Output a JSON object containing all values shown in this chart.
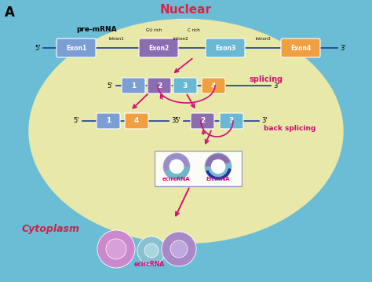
{
  "title": "A",
  "nuclear_label": "Nuclear",
  "cytoplasm_label": "Cytoplasm",
  "premrna_label": "pre-mRNA",
  "gu_rich": "GU rich",
  "c_rich": "C rich",
  "intron1": "Intron1",
  "intron2": "Intron2",
  "intron3": "Intron3",
  "splicing_label": "splicing",
  "back_splicing_label": "back splicing",
  "ecircRNA_label": "ecircRNA",
  "EIciRNA_label": "EIciRNA",
  "ecircRNA_bottom_label": "ecircRNA",
  "exon_colors": {
    "exon1": "#7b9fd4",
    "exon2": "#8b6db0",
    "exon3": "#6ab8d4",
    "exon4": "#f0a040"
  },
  "bg_outer": "#6bbdd6",
  "bg_nuclear": "#e8e8a8",
  "line_color": "#1a3a99",
  "arrow_color": "#cc1177",
  "text_color_nuclear": "#dd2244",
  "text_color_cytoplasm": "#cc2244",
  "box_border": "#9999bb"
}
